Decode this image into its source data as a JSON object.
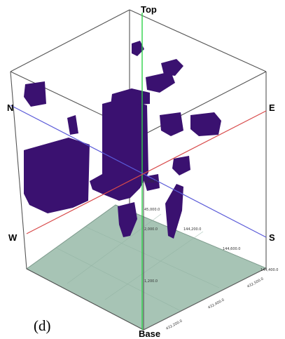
{
  "figure": {
    "caption": "(d)",
    "directions": {
      "top": "Top",
      "base": "Base",
      "north": "N",
      "south": "S",
      "east": "E",
      "west": "W"
    },
    "tick_labels": [
      "3,200.0",
      "45,000.0",
      "2,000.0",
      "144,200.0",
      "144,600.0",
      "144,400.0",
      "1,200.0",
      "432,500.0",
      "432,400.0",
      "432,200.0"
    ],
    "colors": {
      "voxel": "#3a1170",
      "base_plane": "#a7c4b5",
      "vertical_axis": "#2fd24a",
      "ns_axis": "#5a5ad8",
      "ew_axis": "#d84a4a",
      "frame": "#555555"
    }
  }
}
